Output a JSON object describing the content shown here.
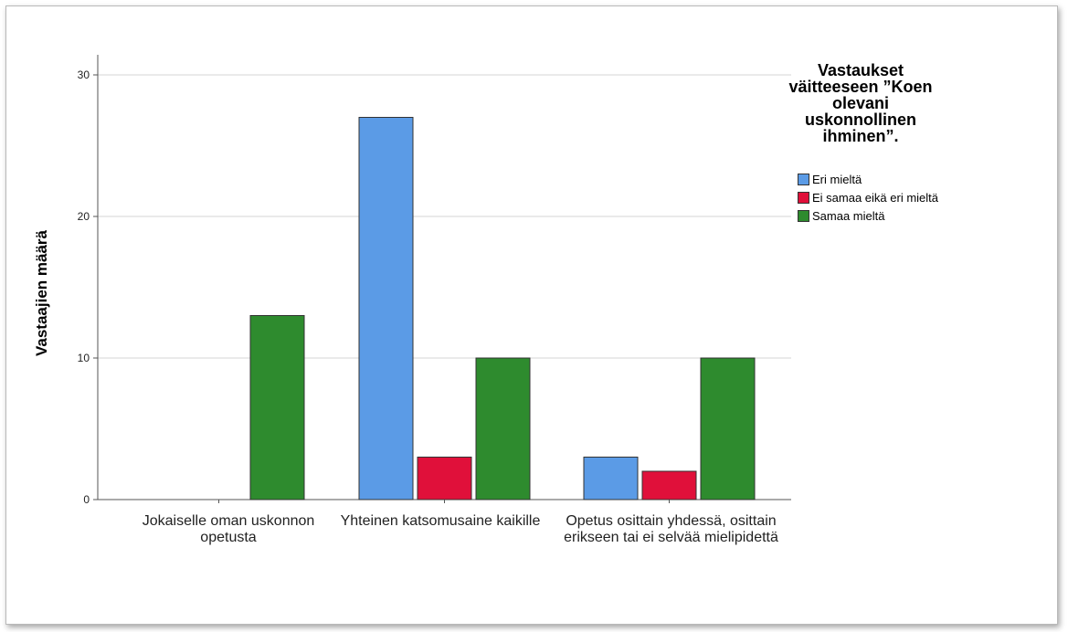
{
  "chart_data": {
    "type": "bar",
    "ylabel": "Vastaajien määrä",
    "xlabel": "",
    "ylim": [
      0,
      31
    ],
    "yticks": [
      0,
      10,
      20,
      30
    ],
    "grid": true,
    "legend_position": "right",
    "legend_title": "Vastaukset väitteeseen ”Koen olevani uskonnollinen ihminen”.",
    "categories": [
      "Jokaiselle oman uskonnon opetusta",
      "Yhteinen katsomusaine kaikille",
      "Opetus osittain yhdessä, osittain erikseen tai ei selvää mielipidettä"
    ],
    "series": [
      {
        "name": "Eri mieltä",
        "color": "#5b9be6",
        "values": [
          0,
          27,
          3
        ]
      },
      {
        "name": "Ei samaa eikä eri mieltä",
        "color": "#e0103a",
        "values": [
          0,
          3,
          2
        ]
      },
      {
        "name": "Samaa mieltä",
        "color": "#2e8b2e",
        "values": [
          13,
          10,
          10
        ]
      }
    ]
  }
}
